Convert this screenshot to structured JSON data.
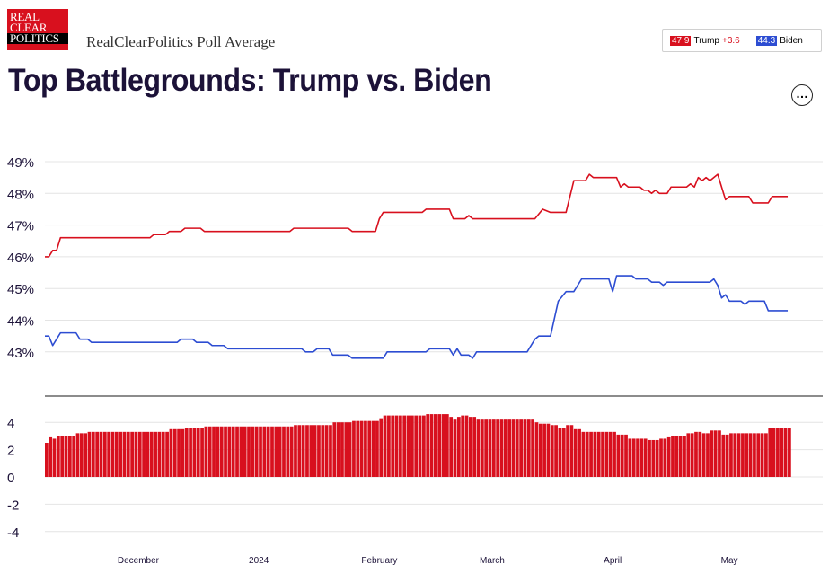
{
  "header": {
    "logo_lines": [
      "REAL",
      "CLEAR",
      "POLITICS"
    ],
    "brand": "RealClearPolitics Poll Average",
    "title": "Top Battlegrounds: Trump vs. Biden",
    "menu_icon": "ellipsis-icon"
  },
  "legend": {
    "trump": {
      "value": "47.9",
      "name": "Trump",
      "spread": "+3.6",
      "color": "#d8101e"
    },
    "biden": {
      "value": "44.3",
      "name": "Biden",
      "color": "#2d4dd2"
    }
  },
  "chart_data": [
    {
      "type": "line",
      "ylim": [
        42,
        50
      ],
      "y_ticks": [
        "49%",
        "48%",
        "47%",
        "46%",
        "45%",
        "44%",
        "43%"
      ],
      "y_tick_values": [
        49,
        48,
        47,
        46,
        45,
        44,
        43
      ],
      "grid": true,
      "x_tick_labels": [
        "December",
        "2024",
        "February",
        "March",
        "April",
        "May"
      ],
      "x_tick_dates": [
        "2023-12-01",
        "2024-01-01",
        "2024-02-01",
        "2024-03-01",
        "2024-04-01",
        "2024-05-01"
      ],
      "x_start": "2023-11-07",
      "x_end": "2024-05-25",
      "series": [
        {
          "name": "Trump",
          "color": "#d8101e",
          "points": [
            [
              "2023-11-07",
              46.0
            ],
            [
              "2023-11-08",
              46.0
            ],
            [
              "2023-11-09",
              46.2
            ],
            [
              "2023-11-10",
              46.2
            ],
            [
              "2023-11-11",
              46.6
            ],
            [
              "2023-11-14",
              46.6
            ],
            [
              "2023-12-04",
              46.6
            ],
            [
              "2023-12-05",
              46.7
            ],
            [
              "2023-12-08",
              46.7
            ],
            [
              "2023-12-09",
              46.8
            ],
            [
              "2023-12-12",
              46.8
            ],
            [
              "2023-12-13",
              46.9
            ],
            [
              "2023-12-17",
              46.9
            ],
            [
              "2023-12-18",
              46.8
            ],
            [
              "2024-01-09",
              46.8
            ],
            [
              "2024-01-10",
              46.9
            ],
            [
              "2024-01-24",
              46.9
            ],
            [
              "2024-01-25",
              46.8
            ],
            [
              "2024-01-31",
              46.8
            ],
            [
              "2024-02-01",
              47.2
            ],
            [
              "2024-02-02",
              47.4
            ],
            [
              "2024-02-12",
              47.4
            ],
            [
              "2024-02-13",
              47.5
            ],
            [
              "2024-02-19",
              47.5
            ],
            [
              "2024-02-20",
              47.2
            ],
            [
              "2024-02-23",
              47.2
            ],
            [
              "2024-02-24",
              47.3
            ],
            [
              "2024-02-25",
              47.2
            ],
            [
              "2024-03-12",
              47.2
            ],
            [
              "2024-03-14",
              47.5
            ],
            [
              "2024-03-16",
              47.4
            ],
            [
              "2024-03-20",
              47.4
            ],
            [
              "2024-03-22",
              48.4
            ],
            [
              "2024-03-25",
              48.4
            ],
            [
              "2024-03-26",
              48.6
            ],
            [
              "2024-03-27",
              48.5
            ],
            [
              "2024-04-02",
              48.5
            ],
            [
              "2024-04-03",
              48.2
            ],
            [
              "2024-04-04",
              48.3
            ],
            [
              "2024-04-05",
              48.2
            ],
            [
              "2024-04-08",
              48.2
            ],
            [
              "2024-04-09",
              48.1
            ],
            [
              "2024-04-10",
              48.1
            ],
            [
              "2024-04-11",
              48.0
            ],
            [
              "2024-04-12",
              48.1
            ],
            [
              "2024-04-13",
              48.0
            ],
            [
              "2024-04-15",
              48.0
            ],
            [
              "2024-04-16",
              48.2
            ],
            [
              "2024-04-20",
              48.2
            ],
            [
              "2024-04-21",
              48.3
            ],
            [
              "2024-04-22",
              48.2
            ],
            [
              "2024-04-23",
              48.5
            ],
            [
              "2024-04-24",
              48.4
            ],
            [
              "2024-04-25",
              48.5
            ],
            [
              "2024-04-26",
              48.4
            ],
            [
              "2024-04-27",
              48.5
            ],
            [
              "2024-04-28",
              48.6
            ],
            [
              "2024-04-30",
              47.8
            ],
            [
              "2024-05-01",
              47.9
            ],
            [
              "2024-05-06",
              47.9
            ],
            [
              "2024-05-07",
              47.7
            ],
            [
              "2024-05-11",
              47.7
            ],
            [
              "2024-05-12",
              47.9
            ],
            [
              "2024-05-16",
              47.9
            ]
          ]
        },
        {
          "name": "Biden",
          "color": "#2d4dd2",
          "points": [
            [
              "2023-11-07",
              43.5
            ],
            [
              "2023-11-08",
              43.5
            ],
            [
              "2023-11-09",
              43.2
            ],
            [
              "2023-11-10",
              43.4
            ],
            [
              "2023-11-11",
              43.6
            ],
            [
              "2023-11-15",
              43.6
            ],
            [
              "2023-11-16",
              43.4
            ],
            [
              "2023-11-18",
              43.4
            ],
            [
              "2023-11-19",
              43.3
            ],
            [
              "2023-12-11",
              43.3
            ],
            [
              "2023-12-12",
              43.4
            ],
            [
              "2023-12-15",
              43.4
            ],
            [
              "2023-12-16",
              43.3
            ],
            [
              "2023-12-19",
              43.3
            ],
            [
              "2023-12-20",
              43.2
            ],
            [
              "2023-12-23",
              43.2
            ],
            [
              "2023-12-24",
              43.1
            ],
            [
              "2024-01-12",
              43.1
            ],
            [
              "2024-01-13",
              43.0
            ],
            [
              "2024-01-15",
              43.0
            ],
            [
              "2024-01-16",
              43.1
            ],
            [
              "2024-01-19",
              43.1
            ],
            [
              "2024-01-20",
              42.9
            ],
            [
              "2024-01-24",
              42.9
            ],
            [
              "2024-01-25",
              42.8
            ],
            [
              "2024-02-02",
              42.8
            ],
            [
              "2024-02-03",
              43.0
            ],
            [
              "2024-02-13",
              43.0
            ],
            [
              "2024-02-14",
              43.1
            ],
            [
              "2024-02-19",
              43.1
            ],
            [
              "2024-02-20",
              42.9
            ],
            [
              "2024-02-21",
              43.1
            ],
            [
              "2024-02-22",
              42.9
            ],
            [
              "2024-02-24",
              42.9
            ],
            [
              "2024-02-25",
              42.8
            ],
            [
              "2024-02-26",
              43.0
            ],
            [
              "2024-03-10",
              43.0
            ],
            [
              "2024-03-12",
              43.4
            ],
            [
              "2024-03-13",
              43.5
            ],
            [
              "2024-03-16",
              43.5
            ],
            [
              "2024-03-18",
              44.6
            ],
            [
              "2024-03-20",
              44.9
            ],
            [
              "2024-03-22",
              44.9
            ],
            [
              "2024-03-24",
              45.3
            ],
            [
              "2024-03-31",
              45.3
            ],
            [
              "2024-04-01",
              44.9
            ],
            [
              "2024-04-02",
              45.4
            ],
            [
              "2024-04-06",
              45.4
            ],
            [
              "2024-04-07",
              45.3
            ],
            [
              "2024-04-10",
              45.3
            ],
            [
              "2024-04-11",
              45.2
            ],
            [
              "2024-04-13",
              45.2
            ],
            [
              "2024-04-14",
              45.1
            ],
            [
              "2024-04-15",
              45.2
            ],
            [
              "2024-04-26",
              45.2
            ],
            [
              "2024-04-27",
              45.3
            ],
            [
              "2024-04-28",
              45.1
            ],
            [
              "2024-04-29",
              44.7
            ],
            [
              "2024-04-30",
              44.8
            ],
            [
              "2024-05-01",
              44.6
            ],
            [
              "2024-05-04",
              44.6
            ],
            [
              "2024-05-05",
              44.5
            ],
            [
              "2024-05-06",
              44.6
            ],
            [
              "2024-05-10",
              44.6
            ],
            [
              "2024-05-11",
              44.3
            ],
            [
              "2024-05-16",
              44.3
            ]
          ]
        }
      ]
    },
    {
      "type": "bar",
      "name": "Trump spread",
      "color": "#d8101e",
      "ylim": [
        -5,
        5
      ],
      "y_ticks": [
        "4",
        "2",
        "0",
        "-2",
        "-4"
      ],
      "y_tick_values": [
        4,
        2,
        0,
        -2,
        -4
      ],
      "grid": true,
      "spread_steps": [
        [
          "2023-11-07",
          2.5
        ],
        [
          "2023-11-08",
          2.9
        ],
        [
          "2023-11-09",
          2.8
        ],
        [
          "2023-11-10",
          3.0
        ],
        [
          "2023-11-15",
          3.2
        ],
        [
          "2023-11-18",
          3.3
        ],
        [
          "2023-12-04",
          3.3
        ],
        [
          "2023-12-09",
          3.5
        ],
        [
          "2023-12-13",
          3.6
        ],
        [
          "2023-12-18",
          3.7
        ],
        [
          "2024-01-10",
          3.8
        ],
        [
          "2024-01-20",
          4.0
        ],
        [
          "2024-01-25",
          4.1
        ],
        [
          "2024-02-01",
          4.3
        ],
        [
          "2024-02-02",
          4.5
        ],
        [
          "2024-02-13",
          4.6
        ],
        [
          "2024-02-19",
          4.4
        ],
        [
          "2024-02-20",
          4.2
        ],
        [
          "2024-02-21",
          4.4
        ],
        [
          "2024-02-22",
          4.5
        ],
        [
          "2024-02-24",
          4.4
        ],
        [
          "2024-02-26",
          4.2
        ],
        [
          "2024-03-12",
          4.0
        ],
        [
          "2024-03-13",
          3.9
        ],
        [
          "2024-03-16",
          3.8
        ],
        [
          "2024-03-18",
          3.6
        ],
        [
          "2024-03-20",
          3.8
        ],
        [
          "2024-03-22",
          3.5
        ],
        [
          "2024-03-24",
          3.3
        ],
        [
          "2024-04-02",
          3.1
        ],
        [
          "2024-04-05",
          2.8
        ],
        [
          "2024-04-10",
          2.7
        ],
        [
          "2024-04-13",
          2.8
        ],
        [
          "2024-04-15",
          2.9
        ],
        [
          "2024-04-16",
          3.0
        ],
        [
          "2024-04-20",
          3.2
        ],
        [
          "2024-04-22",
          3.3
        ],
        [
          "2024-04-24",
          3.2
        ],
        [
          "2024-04-26",
          3.4
        ],
        [
          "2024-04-29",
          3.1
        ],
        [
          "2024-05-01",
          3.2
        ],
        [
          "2024-05-11",
          3.6
        ],
        [
          "2024-05-16",
          3.6
        ]
      ]
    }
  ]
}
